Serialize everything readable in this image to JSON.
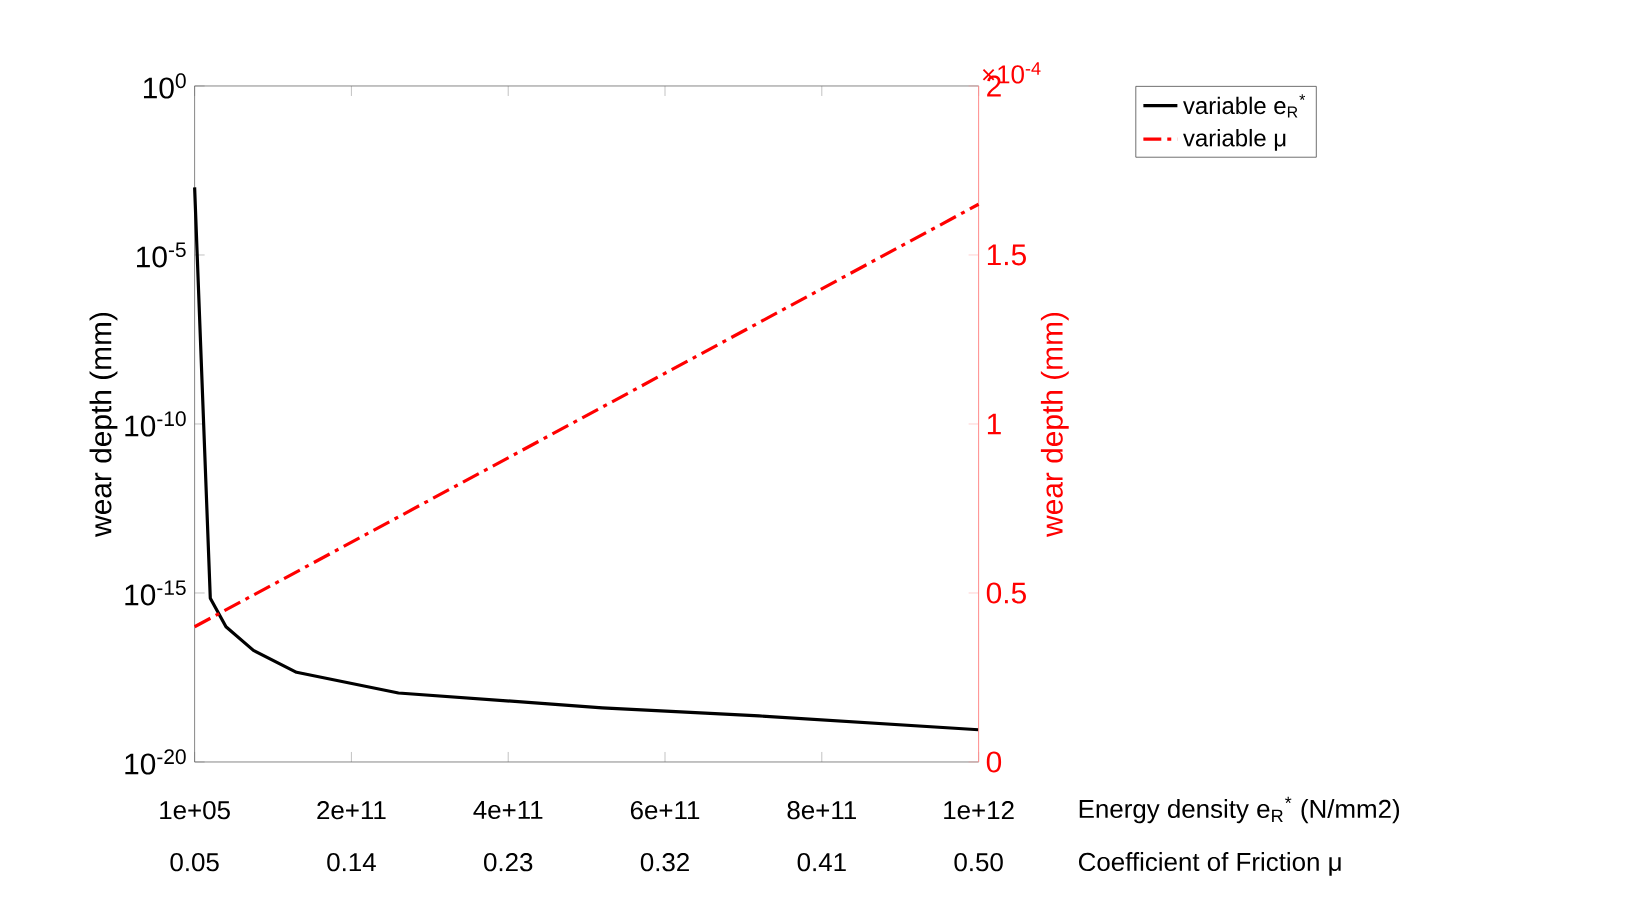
{
  "chart_data": {
    "type": "line",
    "xlabel": "Energy density e$_{R}$$^{*}$ (N/mm2)",
    "x2label": "Coefficient of Friction μ",
    "ylabel": "wear depth (mm)",
    "y2label": "wear depth (mm)",
    "log": "y",
    "legend": "top right",
    "xlim": [
      100000,
      1000000000000
    ],
    "xticks": [
      {
        "value": 100000,
        "label": "1e+05"
      },
      {
        "value": 200000000000,
        "label": "2e+11"
      },
      {
        "value": 400000000000,
        "label": "4e+11"
      },
      {
        "value": 600000000000,
        "label": "6e+11"
      },
      {
        "value": 800000000000,
        "label": "8e+11"
      },
      {
        "value": 1000000000000,
        "label": "1e+12"
      }
    ],
    "x2lim": [
      0.05,
      0.5
    ],
    "x2ticks": [
      0.05,
      0.14,
      0.23,
      0.32,
      0.41,
      {
        "value": 0.5,
        "label": "0.50"
      }
    ],
    "ylim": [
      1e-20,
      1
    ],
    "yticks": [
      {
        "value": 1e-20,
        "label": "10$^{-20}$"
      },
      {
        "value": 1e-15,
        "label": "10$^{-15}$"
      },
      {
        "value": 1e-10,
        "label": "10$^{-10}$"
      },
      {
        "value": 1e-05,
        "label": "10$^{-5}$"
      },
      {
        "value": 1,
        "label": "10$^{0}$"
      }
    ],
    "y2lim": [
      0,
      2
    ],
    "y2ticks": [
      0,
      0.5,
      1,
      1.5,
      2
    ],
    "annotations": [
      "×10$^{-4}$"
    ],
    "series": [
      {
        "name": "variable e$_{R}$$^{*}$",
        "color": "#000000",
        "line_style": "solid",
        "x": [
          100000,
          20000000000,
          40000000000,
          75000000000,
          130000000000,
          260000000000,
          520000000000,
          720000000000,
          1000000000000
        ],
        "values": [
          0.001,
          7e-16,
          1e-16,
          2e-17,
          4.5e-18,
          1.1e-18,
          4e-19,
          2.3e-19,
          9e-20
        ]
      },
      {
        "name": "variable μ",
        "color": "#ff0000",
        "line_style": "dashdot",
        "axis": "y2",
        "x": [
          100000,
          1000000000000
        ],
        "values": [
          0.4,
          1.65
        ]
      }
    ]
  }
}
